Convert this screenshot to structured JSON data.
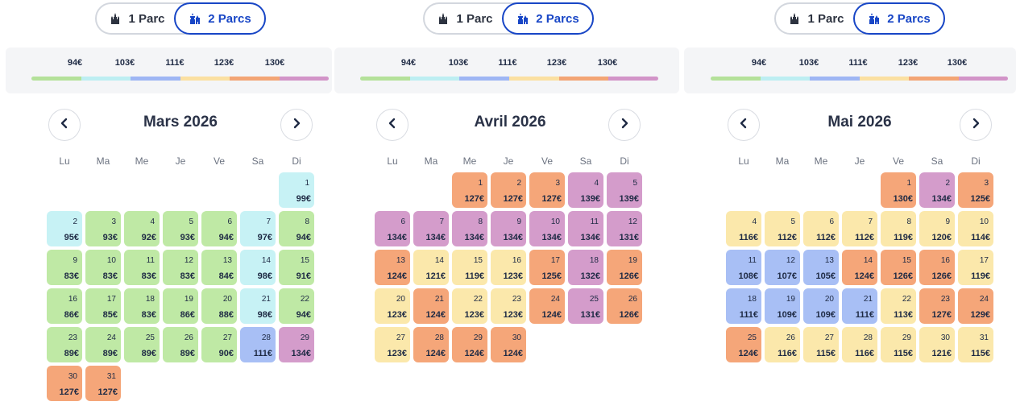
{
  "colors": {
    "c1": "#bfe9a5",
    "c2": "#c7f2f5",
    "c3": "#a8bff5",
    "c4": "#fbe8ab",
    "c5": "#f5a679",
    "c6": "#d49ccb",
    "bar": [
      "#b4e19a",
      "#bdeef2",
      "#9eb6f4",
      "#fbe0a1",
      "#f3a575",
      "#d294c8"
    ]
  },
  "toggle": {
    "one_park_label": "1 Parc",
    "two_parks_label": "2 Parcs",
    "one_park_icon": "castle-icon",
    "two_parks_icon": "two-parks-icon",
    "selected": "two_parks"
  },
  "legend": {
    "labels": [
      "94€",
      "103€",
      "111€",
      "123€",
      "130€"
    ]
  },
  "weekdays": [
    "Lu",
    "Ma",
    "Me",
    "Je",
    "Ve",
    "Sa",
    "Di"
  ],
  "nav": {
    "prev_icon": "chevron-left-icon",
    "next_icon": "chevron-right-icon"
  },
  "months": [
    {
      "title": "Mars 2026",
      "offset": 6,
      "days": [
        {
          "d": "1",
          "p": "99€",
          "c": "c2"
        },
        {
          "d": "2",
          "p": "95€",
          "c": "c2"
        },
        {
          "d": "3",
          "p": "93€",
          "c": "c1"
        },
        {
          "d": "4",
          "p": "92€",
          "c": "c1"
        },
        {
          "d": "5",
          "p": "93€",
          "c": "c1"
        },
        {
          "d": "6",
          "p": "94€",
          "c": "c1"
        },
        {
          "d": "7",
          "p": "97€",
          "c": "c2"
        },
        {
          "d": "8",
          "p": "94€",
          "c": "c1"
        },
        {
          "d": "9",
          "p": "83€",
          "c": "c1"
        },
        {
          "d": "10",
          "p": "83€",
          "c": "c1"
        },
        {
          "d": "11",
          "p": "83€",
          "c": "c1"
        },
        {
          "d": "12",
          "p": "83€",
          "c": "c1"
        },
        {
          "d": "13",
          "p": "84€",
          "c": "c1"
        },
        {
          "d": "14",
          "p": "98€",
          "c": "c2"
        },
        {
          "d": "15",
          "p": "91€",
          "c": "c1"
        },
        {
          "d": "16",
          "p": "86€",
          "c": "c1"
        },
        {
          "d": "17",
          "p": "85€",
          "c": "c1"
        },
        {
          "d": "18",
          "p": "83€",
          "c": "c1"
        },
        {
          "d": "19",
          "p": "86€",
          "c": "c1"
        },
        {
          "d": "20",
          "p": "88€",
          "c": "c1"
        },
        {
          "d": "21",
          "p": "98€",
          "c": "c2"
        },
        {
          "d": "22",
          "p": "94€",
          "c": "c1"
        },
        {
          "d": "23",
          "p": "89€",
          "c": "c1"
        },
        {
          "d": "24",
          "p": "89€",
          "c": "c1"
        },
        {
          "d": "25",
          "p": "89€",
          "c": "c1"
        },
        {
          "d": "26",
          "p": "89€",
          "c": "c1"
        },
        {
          "d": "27",
          "p": "90€",
          "c": "c1"
        },
        {
          "d": "28",
          "p": "111€",
          "c": "c3"
        },
        {
          "d": "29",
          "p": "134€",
          "c": "c6"
        },
        {
          "d": "30",
          "p": "127€",
          "c": "c5"
        },
        {
          "d": "31",
          "p": "127€",
          "c": "c5"
        }
      ]
    },
    {
      "title": "Avril 2026",
      "offset": 2,
      "days": [
        {
          "d": "1",
          "p": "127€",
          "c": "c5"
        },
        {
          "d": "2",
          "p": "127€",
          "c": "c5"
        },
        {
          "d": "3",
          "p": "127€",
          "c": "c5"
        },
        {
          "d": "4",
          "p": "139€",
          "c": "c6"
        },
        {
          "d": "5",
          "p": "139€",
          "c": "c6"
        },
        {
          "d": "6",
          "p": "134€",
          "c": "c6"
        },
        {
          "d": "7",
          "p": "134€",
          "c": "c6"
        },
        {
          "d": "8",
          "p": "134€",
          "c": "c6"
        },
        {
          "d": "9",
          "p": "134€",
          "c": "c6"
        },
        {
          "d": "10",
          "p": "134€",
          "c": "c6"
        },
        {
          "d": "11",
          "p": "134€",
          "c": "c6"
        },
        {
          "d": "12",
          "p": "131€",
          "c": "c6"
        },
        {
          "d": "13",
          "p": "124€",
          "c": "c5"
        },
        {
          "d": "14",
          "p": "121€",
          "c": "c4"
        },
        {
          "d": "15",
          "p": "119€",
          "c": "c4"
        },
        {
          "d": "16",
          "p": "123€",
          "c": "c4"
        },
        {
          "d": "17",
          "p": "125€",
          "c": "c5"
        },
        {
          "d": "18",
          "p": "132€",
          "c": "c6"
        },
        {
          "d": "19",
          "p": "126€",
          "c": "c5"
        },
        {
          "d": "20",
          "p": "123€",
          "c": "c4"
        },
        {
          "d": "21",
          "p": "124€",
          "c": "c5"
        },
        {
          "d": "22",
          "p": "123€",
          "c": "c4"
        },
        {
          "d": "23",
          "p": "123€",
          "c": "c4"
        },
        {
          "d": "24",
          "p": "124€",
          "c": "c5"
        },
        {
          "d": "25",
          "p": "131€",
          "c": "c6"
        },
        {
          "d": "26",
          "p": "126€",
          "c": "c5"
        },
        {
          "d": "27",
          "p": "123€",
          "c": "c4"
        },
        {
          "d": "28",
          "p": "124€",
          "c": "c5"
        },
        {
          "d": "29",
          "p": "124€",
          "c": "c5"
        },
        {
          "d": "30",
          "p": "124€",
          "c": "c5"
        }
      ]
    },
    {
      "title": "Mai 2026",
      "offset": 4,
      "days": [
        {
          "d": "1",
          "p": "130€",
          "c": "c5"
        },
        {
          "d": "2",
          "p": "134€",
          "c": "c6"
        },
        {
          "d": "3",
          "p": "125€",
          "c": "c5"
        },
        {
          "d": "4",
          "p": "116€",
          "c": "c4"
        },
        {
          "d": "5",
          "p": "112€",
          "c": "c4"
        },
        {
          "d": "6",
          "p": "112€",
          "c": "c4"
        },
        {
          "d": "7",
          "p": "112€",
          "c": "c4"
        },
        {
          "d": "8",
          "p": "119€",
          "c": "c4"
        },
        {
          "d": "9",
          "p": "120€",
          "c": "c4"
        },
        {
          "d": "10",
          "p": "114€",
          "c": "c4"
        },
        {
          "d": "11",
          "p": "108€",
          "c": "c3"
        },
        {
          "d": "12",
          "p": "107€",
          "c": "c3"
        },
        {
          "d": "13",
          "p": "105€",
          "c": "c3"
        },
        {
          "d": "14",
          "p": "124€",
          "c": "c5"
        },
        {
          "d": "15",
          "p": "126€",
          "c": "c5"
        },
        {
          "d": "16",
          "p": "126€",
          "c": "c5"
        },
        {
          "d": "17",
          "p": "119€",
          "c": "c4"
        },
        {
          "d": "18",
          "p": "111€",
          "c": "c3"
        },
        {
          "d": "19",
          "p": "109€",
          "c": "c3"
        },
        {
          "d": "20",
          "p": "109€",
          "c": "c3"
        },
        {
          "d": "21",
          "p": "111€",
          "c": "c3"
        },
        {
          "d": "22",
          "p": "113€",
          "c": "c4"
        },
        {
          "d": "23",
          "p": "127€",
          "c": "c5"
        },
        {
          "d": "24",
          "p": "129€",
          "c": "c5"
        },
        {
          "d": "25",
          "p": "124€",
          "c": "c5"
        },
        {
          "d": "26",
          "p": "116€",
          "c": "c4"
        },
        {
          "d": "27",
          "p": "115€",
          "c": "c4"
        },
        {
          "d": "28",
          "p": "116€",
          "c": "c4"
        },
        {
          "d": "29",
          "p": "115€",
          "c": "c4"
        },
        {
          "d": "30",
          "p": "121€",
          "c": "c4"
        },
        {
          "d": "31",
          "p": "115€",
          "c": "c4"
        }
      ]
    }
  ]
}
